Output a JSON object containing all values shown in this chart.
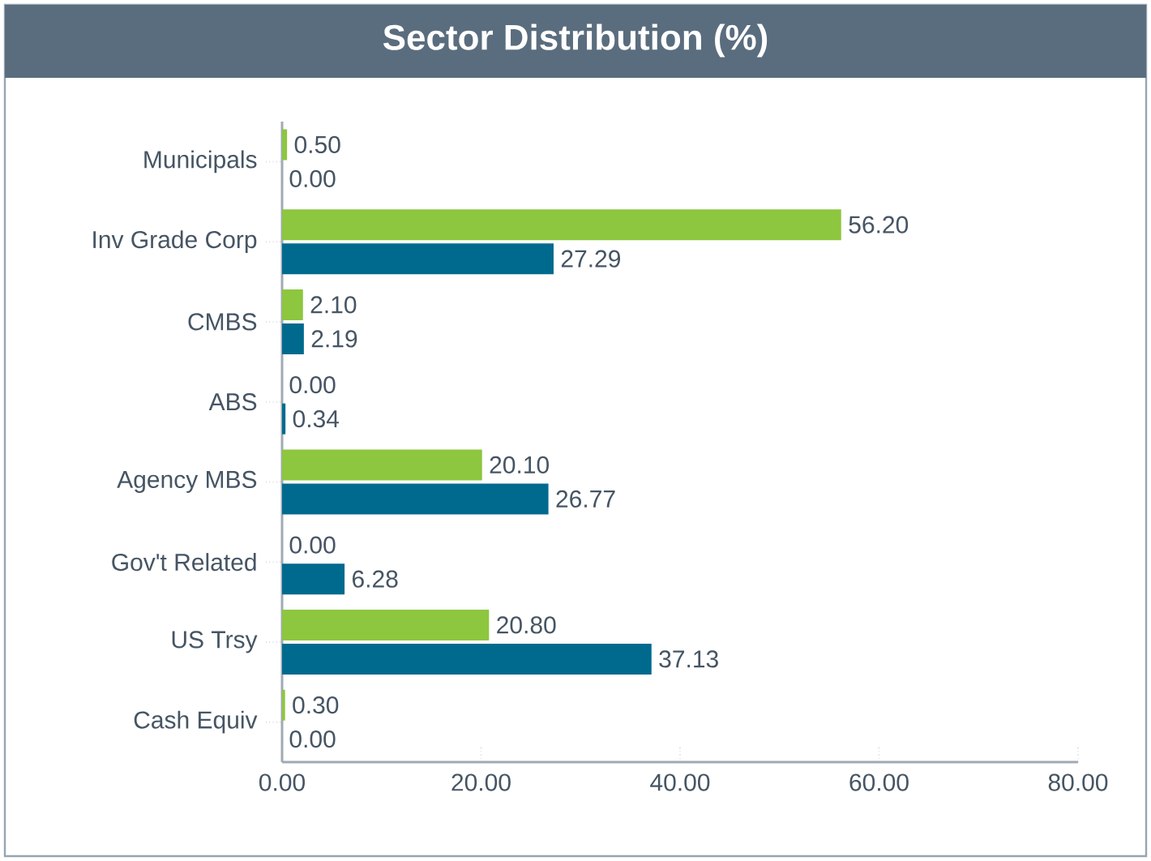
{
  "chart_data": {
    "type": "bar",
    "orientation": "horizontal",
    "title": "Sector Distribution (%)",
    "categories": [
      "Municipals",
      "Inv Grade Corp",
      "CMBS",
      "ABS",
      "Agency MBS",
      "Gov't Related",
      "US Trsy",
      "Cash Equiv"
    ],
    "series": [
      {
        "color": "#8dc63f",
        "values": [
          0.5,
          56.2,
          2.1,
          0,
          20.1,
          0,
          20.8,
          0.3
        ],
        "value_labels": [
          "0.50",
          "56.20",
          "2.10",
          "0.00",
          "20.10",
          "0.00",
          "20.80",
          "0.30"
        ]
      },
      {
        "color": "#006a8e",
        "values": [
          0,
          27.29,
          2.19,
          0.34,
          26.77,
          6.28,
          37.13,
          0
        ],
        "value_labels": [
          "0.00",
          "27.29",
          "2.19",
          "0.34",
          "26.77",
          "6.28",
          "37.13",
          "0.00"
        ]
      }
    ],
    "xlim": [
      0,
      80
    ],
    "xticks": [
      {
        "value": 0,
        "label": "0.00"
      },
      {
        "value": 20,
        "label": "20.00"
      },
      {
        "value": 40,
        "label": "40.00"
      },
      {
        "value": 60,
        "label": "60.00"
      },
      {
        "value": 80,
        "label": "80.00"
      }
    ],
    "grid": false
  }
}
